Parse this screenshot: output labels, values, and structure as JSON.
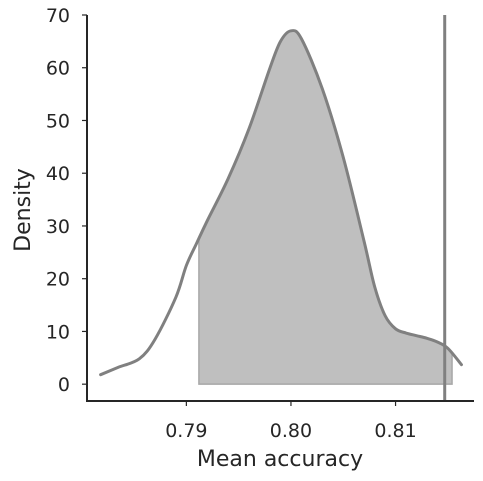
{
  "chart_data": {
    "type": "area",
    "title": "",
    "xlabel": "Mean accuracy",
    "ylabel": "Density",
    "xlim": [
      0.7805,
      0.8175
    ],
    "ylim": [
      -3,
      70
    ],
    "xticks": [
      0.79,
      0.8,
      0.81
    ],
    "xtick_labels": [
      "0.79",
      "0.80",
      "0.81"
    ],
    "yticks": [
      0,
      10,
      20,
      30,
      40,
      50,
      60,
      70
    ],
    "ytick_labels": [
      "0",
      "10",
      "20",
      "30",
      "40",
      "50",
      "60",
      "70"
    ],
    "grid": false,
    "legend": "none",
    "series": [
      {
        "type": "kde-line",
        "color": "#808080",
        "x": [
          0.7818,
          0.7835,
          0.7855,
          0.787,
          0.789,
          0.79,
          0.791,
          0.792,
          0.794,
          0.796,
          0.798,
          0.799,
          0.8,
          0.801,
          0.803,
          0.805,
          0.807,
          0.808,
          0.809,
          0.81,
          0.811,
          0.812,
          0.813,
          0.814,
          0.815,
          0.8163
        ],
        "y": [
          1.8,
          3.2,
          4.8,
          8.5,
          16.5,
          22.5,
          26.8,
          31.0,
          39.0,
          48.5,
          60.0,
          65.0,
          67.0,
          65.5,
          56.0,
          43.0,
          27.0,
          18.5,
          13.0,
          10.5,
          9.7,
          9.2,
          8.7,
          8.0,
          6.8,
          3.7
        ]
      }
    ],
    "shaded_region": {
      "x_start": 0.7912,
      "x_end": 0.8154,
      "color": "#bfbfbf",
      "edge_color": "#a8a8a8"
    },
    "vline": {
      "x": 0.8147,
      "color": "#808080"
    }
  }
}
